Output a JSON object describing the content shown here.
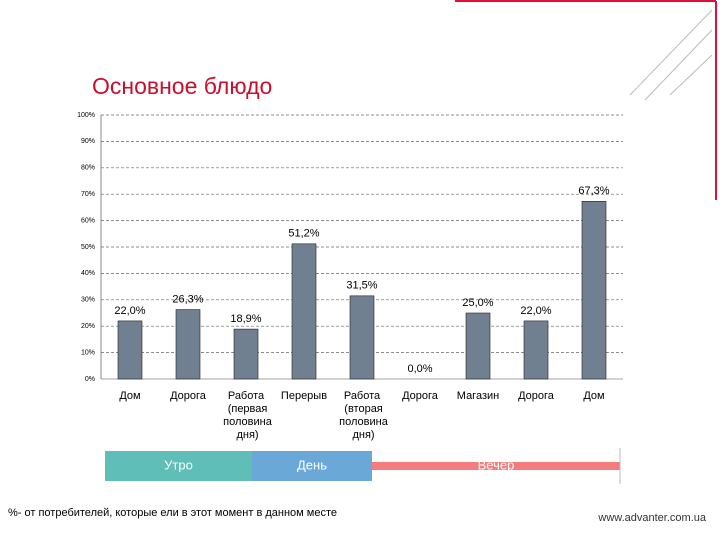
{
  "chart_data": {
    "type": "bar",
    "title": "Основное блюдо",
    "categories": [
      "Дом",
      "Дорога",
      "Работа (первая половина дня)",
      "Перерыв",
      "Работа (вторая половина дня)",
      "Дорога",
      "Магазин",
      "Дорога",
      "Дом"
    ],
    "values": [
      22.0,
      26.3,
      18.9,
      51.2,
      31.5,
      0.0,
      25.0,
      22.0,
      67.3
    ],
    "value_labels": [
      "22,0%",
      "26,3%",
      "18,9%",
      "51,2%",
      "31,5%",
      "0,0%",
      "25,0%",
      "22,0%",
      "67,3%"
    ],
    "color": "#708090",
    "ylim": [
      0,
      100
    ],
    "yticks": [
      {
        "value": 0,
        "label": "0%"
      },
      {
        "value": 10,
        "label": "10%"
      },
      {
        "value": 20,
        "label": "20%"
      },
      {
        "value": 30,
        "label": "30%"
      },
      {
        "value": 40,
        "label": "40%"
      },
      {
        "value": 50,
        "label": "50%"
      },
      {
        "value": 60,
        "label": "60%"
      },
      {
        "value": 70,
        "label": "70%"
      },
      {
        "value": 80,
        "label": "80%"
      },
      {
        "value": 90,
        "label": "90%"
      },
      {
        "value": 100,
        "label": "100%"
      }
    ],
    "grid": true
  },
  "timeline": [
    "Утро",
    "День",
    "Вечер"
  ],
  "footnote": "%- от потребителей, которые ели в этот момент в данном месте",
  "website": "www.advanter.com.ua"
}
